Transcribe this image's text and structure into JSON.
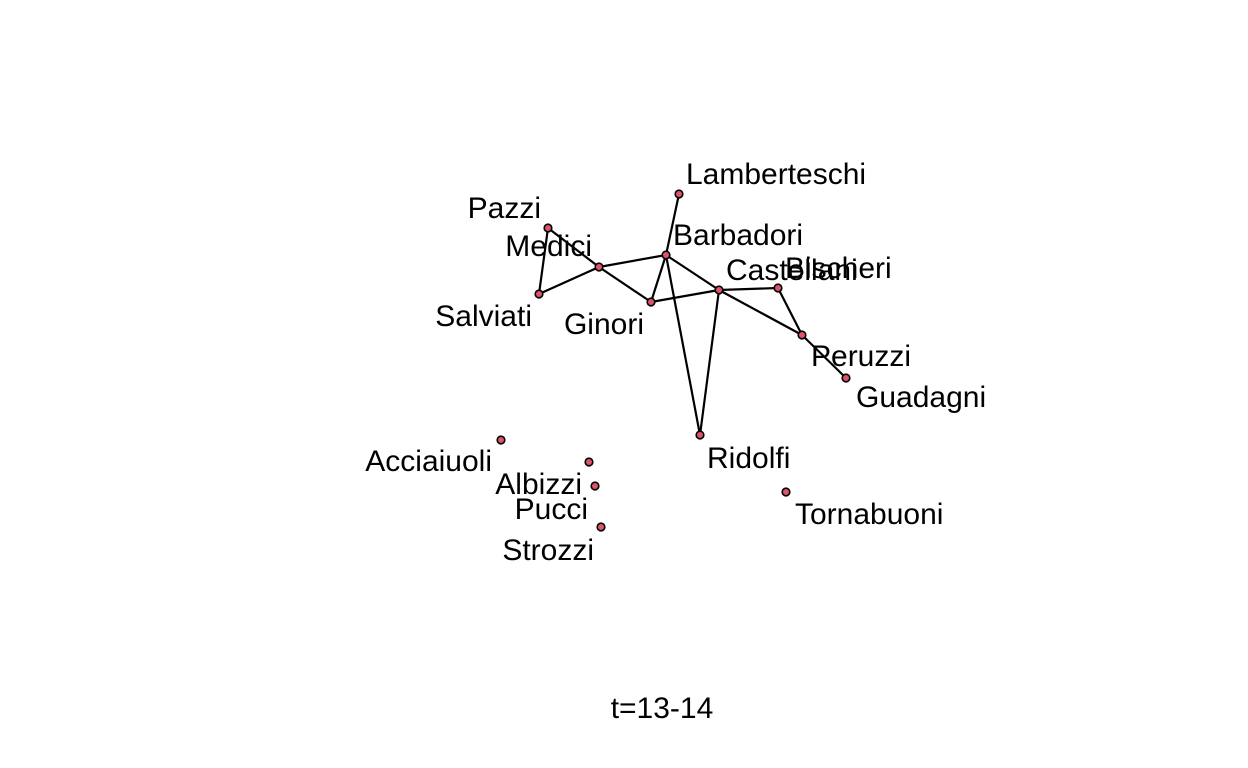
{
  "caption": "t=13-14",
  "node_color": "#df536b",
  "edge_color": "#000000",
  "nodes": [
    {
      "id": "lamberteschi",
      "label": "Lamberteschi"
    },
    {
      "id": "pazzi",
      "label": "Pazzi"
    },
    {
      "id": "medici",
      "label": "Medici"
    },
    {
      "id": "barbadori",
      "label": "Barbadori"
    },
    {
      "id": "castellani",
      "label": "Castellani"
    },
    {
      "id": "bischeri",
      "label": "Bischeri"
    },
    {
      "id": "salviati",
      "label": "Salviati"
    },
    {
      "id": "ginori",
      "label": "Ginori"
    },
    {
      "id": "peruzzi",
      "label": "Peruzzi"
    },
    {
      "id": "guadagni",
      "label": "Guadagni"
    },
    {
      "id": "ridolfi",
      "label": "Ridolfi"
    },
    {
      "id": "acciaiuoli",
      "label": "Acciaiuoli"
    },
    {
      "id": "albizzi",
      "label": "Albizzi"
    },
    {
      "id": "pucci",
      "label": "Pucci"
    },
    {
      "id": "strozzi",
      "label": "Strozzi"
    },
    {
      "id": "tornabuoni",
      "label": "Tornabuoni"
    }
  ],
  "edges": [
    [
      "pazzi",
      "salviati"
    ],
    [
      "pazzi",
      "medici"
    ],
    [
      "salviati",
      "medici"
    ],
    [
      "medici",
      "barbadori"
    ],
    [
      "medici",
      "ginori"
    ],
    [
      "lamberteschi",
      "barbadori"
    ],
    [
      "barbadori",
      "ginori"
    ],
    [
      "barbadori",
      "ridolfi"
    ],
    [
      "barbadori",
      "castellani"
    ],
    [
      "ginori",
      "castellani"
    ],
    [
      "castellani",
      "bischeri"
    ],
    [
      "castellani",
      "ridolfi"
    ],
    [
      "castellani",
      "peruzzi"
    ],
    [
      "bischeri",
      "peruzzi"
    ],
    [
      "peruzzi",
      "guadagni"
    ]
  ]
}
